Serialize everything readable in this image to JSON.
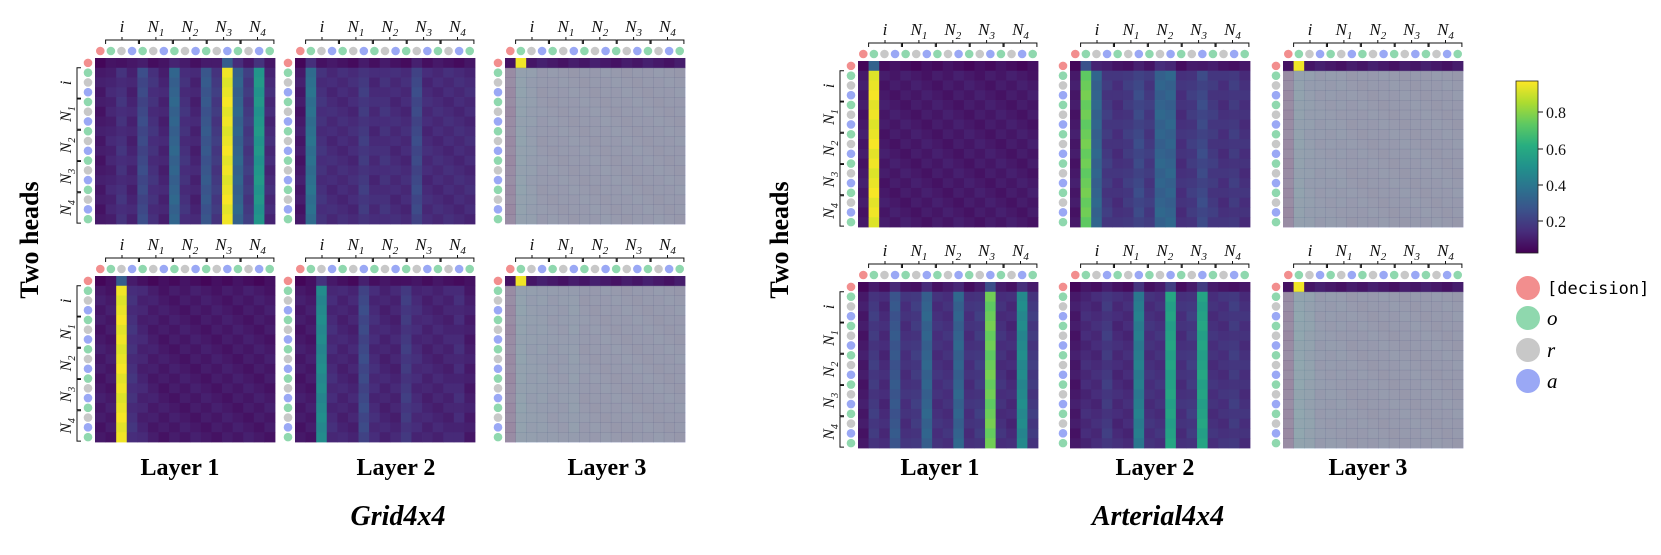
{
  "figure": {
    "row_label": "Two heads",
    "layer_labels": [
      "Layer 1",
      "Layer 2",
      "Layer 3"
    ],
    "panel_labels": [
      "Grid4x4",
      "Arterial4x4"
    ]
  },
  "legend": {
    "items": [
      {
        "label": "[decision]",
        "color": "#f28e8e"
      },
      {
        "label": "o",
        "color": "#8fd8ae"
      },
      {
        "label": "r",
        "color": "#c8c8c8"
      },
      {
        "label": "a",
        "color": "#9aa8f5"
      }
    ]
  },
  "colorbar": {
    "colormap": "viridis",
    "ticks": [
      "0.8",
      "0.6",
      "0.4",
      "0.2"
    ]
  },
  "chart_data": {
    "type": "heatmap",
    "token_groups": [
      "i",
      "N1",
      "N2",
      "N3",
      "N4"
    ],
    "token_types": [
      "decision",
      "o",
      "r",
      "a"
    ],
    "heads": 2,
    "value_range": [
      0,
      1
    ],
    "panels": [
      {
        "name": "Grid4x4",
        "maps": [
          {
            "layer": 1,
            "head": 1,
            "column_weights": [
              0.05,
              0.08,
              0.12,
              0.08,
              0.2,
              0.12,
              0.08,
              0.3,
              0.12,
              0.08,
              0.25,
              0.15,
              0.95,
              0.3,
              0.15,
              0.5,
              0.1
            ]
          },
          {
            "layer": 1,
            "head": 2,
            "column_weights": [
              0.05,
              0.05,
              0.95,
              0.12,
              0.08,
              0.06,
              0.05,
              0.05,
              0.05,
              0.05,
              0.05,
              0.05,
              0.05,
              0.05,
              0.05,
              0.05,
              0.05
            ]
          },
          {
            "layer": 2,
            "head": 1,
            "column_weights": [
              0.05,
              0.35,
              0.12,
              0.1,
              0.1,
              0.1,
              0.15,
              0.1,
              0.12,
              0.1,
              0.1,
              0.2,
              0.1,
              0.1,
              0.1,
              0.1,
              0.1
            ]
          },
          {
            "layer": 2,
            "head": 2,
            "column_weights": [
              0.05,
              0.05,
              0.45,
              0.1,
              0.08,
              0.08,
              0.2,
              0.1,
              0.08,
              0.08,
              0.15,
              0.1,
              0.08,
              0.08,
              0.08,
              0.1,
              0.06
            ]
          },
          {
            "layer": 3,
            "head": 1,
            "column_weights": [
              0.05,
              0.3,
              0.25,
              0.2,
              0.2,
              0.2,
              0.2,
              0.2,
              0.2,
              0.2,
              0.2,
              0.2,
              0.2,
              0.2,
              0.2,
              0.2,
              0.2
            ]
          },
          {
            "layer": 3,
            "head": 2,
            "column_weights": [
              0.05,
              0.3,
              0.25,
              0.25,
              0.22,
              0.22,
              0.25,
              0.2,
              0.2,
              0.2,
              0.2,
              0.2,
              0.2,
              0.2,
              0.2,
              0.2,
              0.2
            ]
          }
        ]
      },
      {
        "name": "Arterial4x4",
        "maps": [
          {
            "layer": 1,
            "head": 1,
            "column_weights": [
              0.05,
              0.95,
              0.05,
              0.05,
              0.05,
              0.05,
              0.05,
              0.05,
              0.05,
              0.05,
              0.05,
              0.05,
              0.05,
              0.05,
              0.05,
              0.05,
              0.05
            ]
          },
          {
            "layer": 1,
            "head": 2,
            "column_weights": [
              0.05,
              0.15,
              0.1,
              0.25,
              0.12,
              0.15,
              0.3,
              0.12,
              0.12,
              0.3,
              0.12,
              0.15,
              0.75,
              0.12,
              0.1,
              0.45,
              0.15
            ]
          },
          {
            "layer": 2,
            "head": 1,
            "column_weights": [
              0.05,
              0.75,
              0.3,
              0.15,
              0.12,
              0.15,
              0.2,
              0.15,
              0.3,
              0.3,
              0.12,
              0.15,
              0.2,
              0.15,
              0.12,
              0.15,
              0.12
            ]
          },
          {
            "layer": 2,
            "head": 2,
            "column_weights": [
              0.05,
              0.1,
              0.1,
              0.15,
              0.1,
              0.1,
              0.4,
              0.12,
              0.12,
              0.55,
              0.12,
              0.15,
              0.55,
              0.12,
              0.12,
              0.15,
              0.12
            ]
          },
          {
            "layer": 3,
            "head": 1,
            "column_weights": [
              0.05,
              0.3,
              0.25,
              0.22,
              0.22,
              0.22,
              0.2,
              0.2,
              0.2,
              0.2,
              0.2,
              0.2,
              0.2,
              0.2,
              0.2,
              0.2,
              0.2
            ]
          },
          {
            "layer": 3,
            "head": 2,
            "column_weights": [
              0.05,
              0.35,
              0.3,
              0.22,
              0.22,
              0.22,
              0.2,
              0.2,
              0.2,
              0.2,
              0.2,
              0.2,
              0.2,
              0.2,
              0.2,
              0.2,
              0.2
            ]
          }
        ]
      }
    ]
  }
}
